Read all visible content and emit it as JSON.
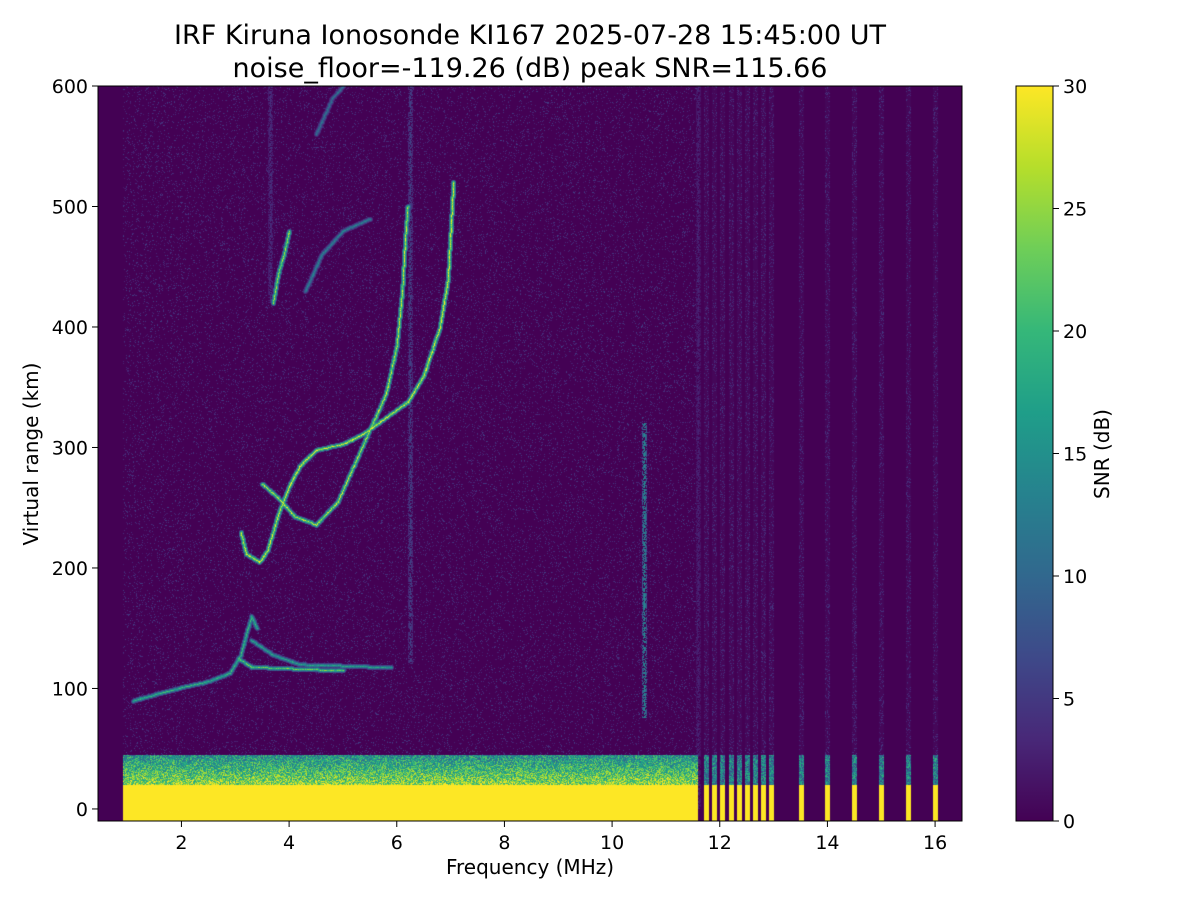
{
  "chart_data": {
    "type": "heatmap",
    "title": "IRF Kiruna Ionosonde KI167 2025-07-28 15:45:00  UT",
    "subtitle": "noise_floor=-119.26 (dB) peak SNR=115.66",
    "xlabel": "Frequency (MHz)",
    "ylabel": "Virtual range (km)",
    "colorbar_label": "SNR (dB)",
    "xlim": [
      0.45,
      16.5
    ],
    "ylim": [
      -10,
      600
    ],
    "clim": [
      0,
      30
    ],
    "x_ticks": [
      2,
      4,
      6,
      8,
      10,
      12,
      14,
      16
    ],
    "y_ticks": [
      0,
      100,
      200,
      300,
      400,
      500,
      600
    ],
    "colorbar_ticks": [
      0,
      5,
      10,
      15,
      20,
      25,
      30
    ],
    "colormap": [
      "#440154",
      "#482878",
      "#3e4989",
      "#31688e",
      "#26828e",
      "#1f9e89",
      "#35b779",
      "#6ece58",
      "#b5de2b",
      "#fde725"
    ],
    "data_start_frequency": 0.92,
    "continuous_sweep_end": 11.6,
    "ground_clutter": {
      "saturated_top_km": 20,
      "fringe_top_km": 45,
      "snr": 30
    },
    "discrete_frequencies": [
      11.75,
      11.9,
      12.05,
      12.2,
      12.35,
      12.5,
      12.65,
      12.8,
      12.95,
      13.5,
      14.0,
      14.5,
      15.0,
      15.5,
      16.0
    ],
    "traces": [
      {
        "snr": 20,
        "points": [
          [
            1.1,
            90
          ],
          [
            1.5,
            95
          ],
          [
            2.0,
            101
          ],
          [
            2.5,
            106
          ],
          [
            2.9,
            113
          ],
          [
            3.1,
            128
          ],
          [
            3.2,
            145
          ],
          [
            3.3,
            160
          ],
          [
            3.4,
            150
          ]
        ]
      },
      {
        "snr": 24,
        "points": [
          [
            3.05,
            125
          ],
          [
            3.3,
            118
          ],
          [
            3.8,
            117
          ],
          [
            4.4,
            116
          ],
          [
            5.0,
            115
          ]
        ]
      },
      {
        "snr": 18,
        "points": [
          [
            3.3,
            140
          ],
          [
            3.7,
            128
          ],
          [
            4.2,
            120
          ],
          [
            5.0,
            119
          ],
          [
            5.6,
            118
          ],
          [
            5.9,
            118
          ]
        ]
      },
      {
        "snr": 30,
        "points": [
          [
            3.1,
            230
          ],
          [
            3.2,
            212
          ],
          [
            3.45,
            205
          ],
          [
            3.6,
            215
          ],
          [
            3.8,
            245
          ],
          [
            4.0,
            268
          ],
          [
            4.2,
            285
          ],
          [
            4.5,
            298
          ],
          [
            5.0,
            303
          ],
          [
            5.4,
            312
          ],
          [
            5.8,
            325
          ],
          [
            6.2,
            338
          ],
          [
            6.5,
            360
          ],
          [
            6.8,
            400
          ],
          [
            6.95,
            440
          ],
          [
            7.0,
            480
          ],
          [
            7.05,
            520
          ]
        ]
      },
      {
        "snr": 28,
        "points": [
          [
            3.5,
            270
          ],
          [
            3.8,
            258
          ],
          [
            4.1,
            243
          ],
          [
            4.5,
            236
          ],
          [
            4.9,
            255
          ],
          [
            5.2,
            285
          ],
          [
            5.5,
            315
          ],
          [
            5.8,
            345
          ],
          [
            6.0,
            385
          ],
          [
            6.1,
            430
          ],
          [
            6.15,
            470
          ],
          [
            6.2,
            500
          ]
        ]
      },
      {
        "snr": 26,
        "points": [
          [
            3.7,
            420
          ],
          [
            3.8,
            445
          ],
          [
            3.9,
            460
          ],
          [
            4.0,
            480
          ]
        ]
      },
      {
        "snr": 14,
        "points": [
          [
            4.3,
            430
          ],
          [
            4.6,
            460
          ],
          [
            5.0,
            480
          ],
          [
            5.5,
            490
          ]
        ]
      },
      {
        "snr": 12,
        "points": [
          [
            4.5,
            560
          ],
          [
            4.8,
            590
          ],
          [
            5.0,
            600
          ]
        ]
      }
    ],
    "vertical_bands": [
      {
        "frequency": 10.6,
        "bottom_km": 75,
        "top_km": 320,
        "snr": 14
      },
      {
        "frequency": 3.65,
        "bottom_km": 420,
        "top_km": 600,
        "snr": 4
      },
      {
        "frequency": 6.25,
        "bottom_km": 120,
        "top_km": 600,
        "snr": 6
      },
      {
        "frequency": 11.6,
        "bottom_km": 0,
        "top_km": 600,
        "snr": 3
      }
    ]
  }
}
